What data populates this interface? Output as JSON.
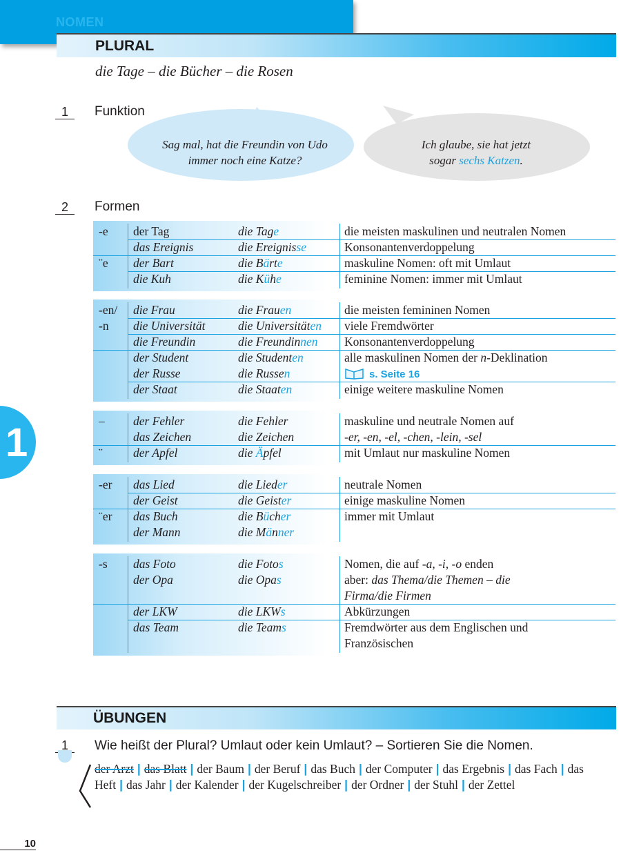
{
  "header": {
    "chapter": "NOMEN",
    "title": "PLURAL",
    "examples": "die Tage – die Bücher – die Rosen"
  },
  "colors": {
    "accent": "#1aa3e0",
    "bar": "#00a0e3"
  },
  "section1": {
    "number": "1",
    "title": "Funktion",
    "bubble_left": [
      "Sag mal, hat die Freundin von Udo",
      "immer noch eine Katze?"
    ],
    "bubble_right": {
      "line1": "Ich glaube, sie hat jetzt",
      "line2_pre": "sogar ",
      "line2_blue": "sechs Katzen",
      "line2_post": "."
    }
  },
  "section2": {
    "number": "2",
    "title": "Formen"
  },
  "groups": [
    {
      "rows": [
        {
          "end": "-e",
          "sg": "der Tag",
          "sg_upright": true,
          "pl": [
            [
              "die Tag",
              0
            ],
            [
              "e",
              1
            ]
          ],
          "ds": [
            [
              "die meisten maskulinen und neutralen Nomen",
              0
            ]
          ],
          "sep": "none"
        },
        {
          "end": "",
          "sg": "das Ereignis",
          "pl": [
            [
              "die Ereignis",
              0
            ],
            [
              "se",
              1
            ]
          ],
          "ds": [
            [
              "Konsonantenverdoppelung",
              0
            ]
          ],
          "sep": "thin"
        },
        {
          "end": "¨e",
          "sg": "der Bart",
          "pl": [
            [
              "die B",
              0
            ],
            [
              "ä",
              1
            ],
            [
              "rt",
              0
            ],
            [
              "e",
              1
            ]
          ],
          "ds": [
            [
              "maskuline Nomen: oft mit Umlaut",
              0
            ]
          ],
          "sep": "full"
        },
        {
          "end": "",
          "sg": "die Kuh",
          "pl": [
            [
              "die K",
              0
            ],
            [
              "ü",
              1
            ],
            [
              "h",
              0
            ],
            [
              "e",
              1
            ]
          ],
          "ds": [
            [
              "feminine Nomen: immer mit Umlaut",
              0
            ]
          ],
          "sep": "thin"
        }
      ]
    },
    {
      "rows": [
        {
          "end": "-en/",
          "sg": "die Frau",
          "pl": [
            [
              "die Frau",
              0
            ],
            [
              "en",
              1
            ]
          ],
          "ds": [
            [
              "die meisten femininen Nomen",
              0
            ]
          ],
          "sep": "none"
        },
        {
          "end": "-n",
          "sg": "die Universität",
          "pl": [
            [
              "die Universität",
              0
            ],
            [
              "en",
              1
            ]
          ],
          "ds": [
            [
              "viele Fremdwörter",
              0
            ]
          ],
          "sep": "thin"
        },
        {
          "end": "",
          "sg": "die Freundin",
          "pl": [
            [
              "die Freundin",
              0
            ],
            [
              "nen",
              1
            ]
          ],
          "ds": [
            [
              "Konsonantenverdoppelung",
              0
            ]
          ],
          "sep": "thin"
        },
        {
          "end": "",
          "sg": "der Student",
          "pl": [
            [
              "die Student",
              0
            ],
            [
              "en",
              1
            ]
          ],
          "ds": [
            [
              "alle maskulinen Nomen der ",
              0
            ],
            [
              "n",
              2
            ],
            [
              "-Deklination",
              0
            ]
          ],
          "sep": "full"
        },
        {
          "end": "",
          "sg": "der Russe",
          "pl": [
            [
              "die Russe",
              0
            ],
            [
              "n",
              1
            ]
          ],
          "ds": [],
          "ref": "s. Seite 16",
          "sep": "none"
        },
        {
          "end": "",
          "sg": "der Staat",
          "pl": [
            [
              "die Staat",
              0
            ],
            [
              "en",
              1
            ]
          ],
          "ds": [
            [
              "einige weitere maskuline Nomen",
              0
            ]
          ],
          "sep": "thin"
        }
      ]
    },
    {
      "rows": [
        {
          "end": "–",
          "sg": "der Fehler",
          "pl": [
            [
              "die Fehler",
              0
            ]
          ],
          "ds": [
            [
              "maskuline und neutrale Nomen auf",
              0
            ]
          ],
          "sep": "none"
        },
        {
          "end": "",
          "sg": "das Zeichen",
          "pl": [
            [
              "die Zeichen",
              0
            ]
          ],
          "ds": [
            [
              "-er, -en, -el, -chen, -lein, -sel",
              2
            ]
          ],
          "sep": "none"
        },
        {
          "end": "¨",
          "sg": "der Apfel",
          "pl": [
            [
              "die ",
              0
            ],
            [
              "Ä",
              1
            ],
            [
              "pfel",
              0
            ]
          ],
          "ds": [
            [
              "mit Umlaut nur maskuline Nomen",
              0
            ]
          ],
          "sep": "full"
        }
      ]
    },
    {
      "rows": [
        {
          "end": "-er",
          "sg": "das Lied",
          "pl": [
            [
              "die Lied",
              0
            ],
            [
              "er",
              1
            ]
          ],
          "ds": [
            [
              "neutrale Nomen",
              0
            ]
          ],
          "sep": "none"
        },
        {
          "end": "",
          "sg": "der Geist",
          "pl": [
            [
              "die Geist",
              0
            ],
            [
              "er",
              1
            ]
          ],
          "ds": [
            [
              "einige maskuline Nomen",
              0
            ]
          ],
          "sep": "thin"
        },
        {
          "end": "¨er",
          "sg": "das Buch",
          "pl": [
            [
              "die B",
              0
            ],
            [
              "ü",
              1
            ],
            [
              "ch",
              0
            ],
            [
              "er",
              1
            ]
          ],
          "ds": [
            [
              "immer mit Umlaut",
              0
            ]
          ],
          "sep": "full"
        },
        {
          "end": "",
          "sg": "der Mann",
          "pl": [
            [
              "die M",
              0
            ],
            [
              "ä",
              1
            ],
            [
              "n",
              0
            ],
            [
              "ner",
              1
            ]
          ],
          "ds": [],
          "sep": "none"
        }
      ]
    },
    {
      "rows": [
        {
          "end": "-s",
          "sg": "das Foto",
          "pl": [
            [
              "die Foto",
              0
            ],
            [
              "s",
              1
            ]
          ],
          "ds": [
            [
              "Nomen, die auf ",
              0
            ],
            [
              "-a, -i, -o",
              2
            ],
            [
              " enden",
              0
            ]
          ],
          "sep": "none"
        },
        {
          "end": "",
          "sg": "der Opa",
          "pl": [
            [
              "die Opa",
              0
            ],
            [
              "s",
              1
            ]
          ],
          "ds": [
            [
              "aber: ",
              0
            ],
            [
              "das Thema/die Themen – die",
              2
            ]
          ],
          "sep": "none"
        },
        {
          "end": "",
          "sg": "",
          "pl": [],
          "ds": [
            [
              "Firma/die Firmen",
              2
            ]
          ],
          "sep": "none"
        },
        {
          "end": "",
          "sg": "der LKW",
          "pl": [
            [
              "die LKW",
              0
            ],
            [
              "s",
              1
            ]
          ],
          "ds": [
            [
              "Abkürzungen",
              0
            ]
          ],
          "sep": "full"
        },
        {
          "end": "",
          "sg": "das Team",
          "pl": [
            [
              "die Team",
              0
            ],
            [
              "s",
              1
            ]
          ],
          "ds": [
            [
              "Fremdwörter aus dem Englischen und",
              0
            ]
          ],
          "sep": "thin"
        },
        {
          "end": "",
          "sg": "",
          "pl": [],
          "ds": [
            [
              "Französischen",
              0
            ]
          ],
          "sep": "none"
        }
      ]
    }
  ],
  "exercises": {
    "title": "ÜBUNGEN",
    "number": "1",
    "task": "Wie heißt der Plural? Umlaut oder kein Umlaut? – Sortieren Sie die Nomen.",
    "words": [
      {
        "w": "der Arzt",
        "done": true
      },
      {
        "w": "das Blatt",
        "done": true
      },
      {
        "w": "der Baum"
      },
      {
        "w": "der Beruf"
      },
      {
        "w": "das Buch"
      },
      {
        "w": "der Computer"
      },
      {
        "w": "das Ergebnis"
      },
      {
        "w": "das Fach"
      },
      {
        "w": "das Heft"
      },
      {
        "w": "das Jahr"
      },
      {
        "w": "der Kalender"
      },
      {
        "w": "der Kugelschreiber"
      },
      {
        "w": "der Ordner"
      },
      {
        "w": "der Stuhl"
      },
      {
        "w": "der Zettel"
      }
    ]
  },
  "chapter_tab": "1",
  "page_number": "10"
}
